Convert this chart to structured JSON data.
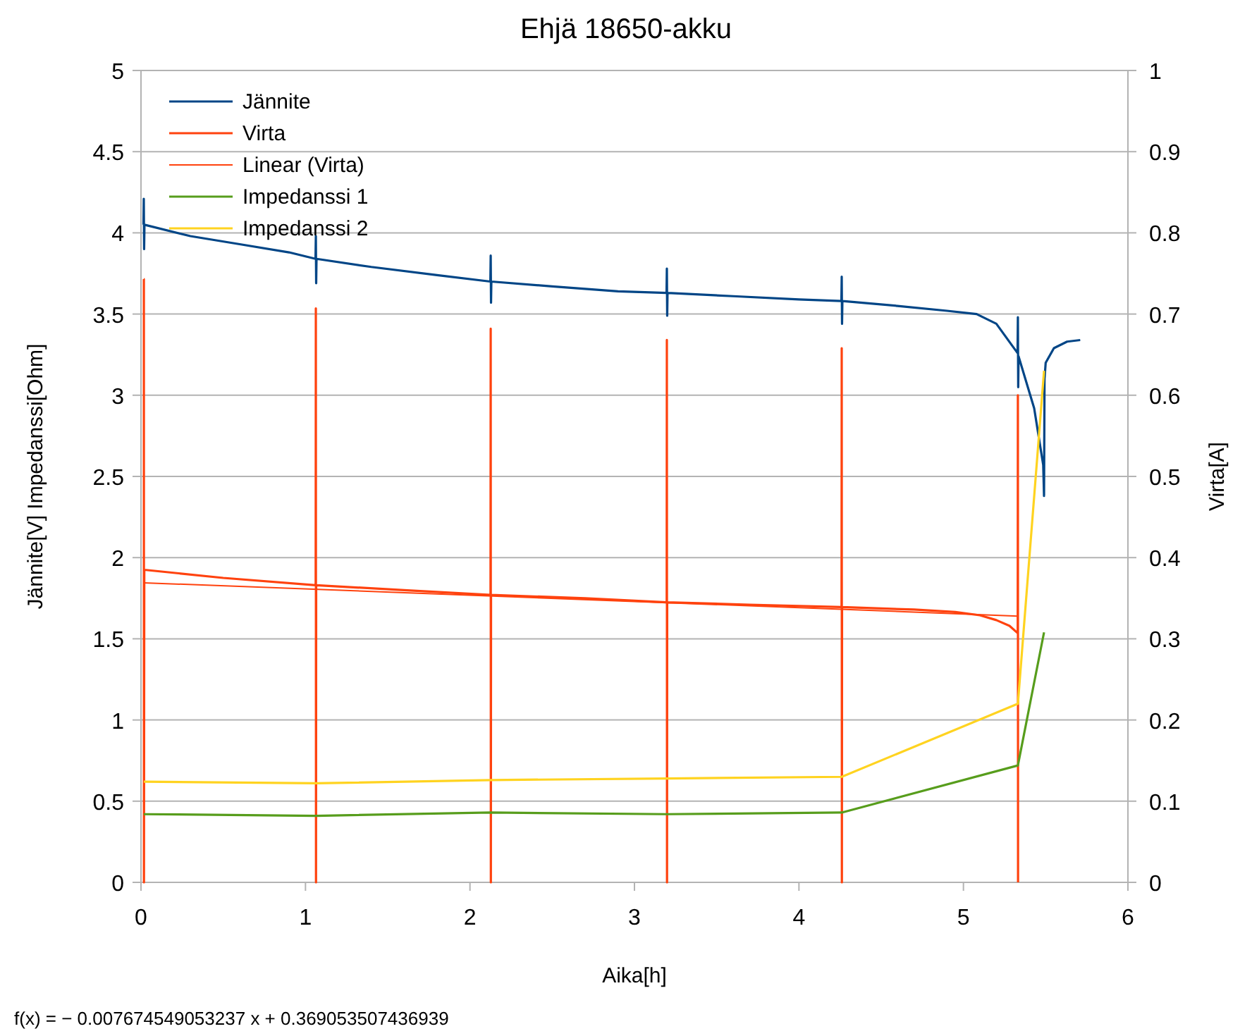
{
  "chart_data": {
    "type": "line",
    "title": "Ehjä 18650-akku",
    "xlabel": "Aika[h]",
    "ylabel": "Jännite[V] Impedanssi[Ohm]",
    "y2label": "Virta[A]",
    "xlim": [
      0,
      6
    ],
    "xticks": [
      0,
      1,
      2,
      3,
      4,
      5,
      6
    ],
    "ylim": [
      0,
      5
    ],
    "yticks": [
      0,
      0.5,
      1,
      1.5,
      2,
      2.5,
      3,
      3.5,
      4,
      4.5,
      5
    ],
    "y2lim": [
      0,
      1
    ],
    "y2ticks": [
      0,
      0.1,
      0.2,
      0.3,
      0.4,
      0.5,
      0.6,
      0.7,
      0.8,
      0.9,
      1
    ],
    "grid": "y",
    "legend": "top left",
    "marker": "none",
    "line_style": "solid",
    "annotations": [
      "f(x) = − 0.007674549053237 x + 0.369053507436939"
    ],
    "series": [
      {
        "name": "Jännite",
        "color": "#004586",
        "x": [
          0.015,
          0.017,
          0.019,
          0.021,
          0.3,
          0.6,
          0.9,
          1.061,
          1.063,
          1.065,
          1.067,
          1.4,
          1.8,
          2.124,
          2.126,
          2.128,
          2.13,
          2.5,
          2.9,
          3.195,
          3.197,
          3.199,
          3.201,
          3.6,
          4.0,
          4.258,
          4.26,
          4.262,
          4.264,
          4.6,
          4.9,
          5.08,
          5.2,
          5.3,
          5.329,
          5.331,
          5.333,
          5.335,
          5.43,
          5.485,
          5.49,
          5.493,
          5.5,
          5.55,
          5.63,
          5.71
        ],
        "values": [
          4.05,
          4.21,
          3.9,
          4.05,
          3.98,
          3.93,
          3.88,
          3.84,
          3.98,
          3.69,
          3.84,
          3.79,
          3.74,
          3.7,
          3.86,
          3.57,
          3.7,
          3.67,
          3.64,
          3.63,
          3.78,
          3.49,
          3.63,
          3.61,
          3.59,
          3.58,
          3.73,
          3.44,
          3.58,
          3.55,
          3.52,
          3.5,
          3.44,
          3.3,
          3.26,
          3.48,
          3.05,
          3.24,
          2.92,
          2.57,
          2.38,
          3.1,
          3.2,
          3.29,
          3.33,
          3.34
        ]
      },
      {
        "name": "Virta",
        "color": "#ff420e",
        "axis": "y2",
        "x": [
          0.017,
          0.0175,
          0.018,
          0.02,
          0.5,
          1.062,
          1.063,
          1.064,
          1.065,
          1.6,
          2.125,
          2.126,
          2.127,
          2.128,
          2.7,
          3.196,
          3.197,
          3.198,
          3.199,
          3.7,
          4.259,
          4.26,
          4.261,
          4.262,
          4.7,
          4.95,
          5.1,
          5.2,
          5.28,
          5.33,
          5.331,
          5.332
        ],
        "values": [
          0.743,
          0.743,
          0,
          0.385,
          0.375,
          0.366,
          0.707,
          0,
          0.366,
          0.36,
          0.354,
          0.682,
          0,
          0.354,
          0.35,
          0.345,
          0.668,
          0,
          0.345,
          0.342,
          0.339,
          0.658,
          0,
          0.339,
          0.336,
          0.333,
          0.329,
          0.323,
          0.316,
          0.307,
          0.6,
          0
        ]
      },
      {
        "name": "Linear (Virta)",
        "color": "#ff420e",
        "axis": "y2",
        "x": [
          0.017,
          5.331
        ],
        "values": [
          0.369,
          0.328
        ]
      },
      {
        "name": "Impedanssi 1",
        "color": "#579d1c",
        "x": [
          0.017,
          1.063,
          2.126,
          3.197,
          4.26,
          5.331,
          5.49
        ],
        "values": [
          0.42,
          0.41,
          0.43,
          0.42,
          0.43,
          0.72,
          1.54
        ]
      },
      {
        "name": "Impedanssi 2",
        "color": "#ffd320",
        "x": [
          0.017,
          1.063,
          2.126,
          3.197,
          4.26,
          5.331,
          5.49
        ],
        "values": [
          0.62,
          0.61,
          0.63,
          0.64,
          0.65,
          1.1,
          3.15
        ]
      }
    ]
  }
}
